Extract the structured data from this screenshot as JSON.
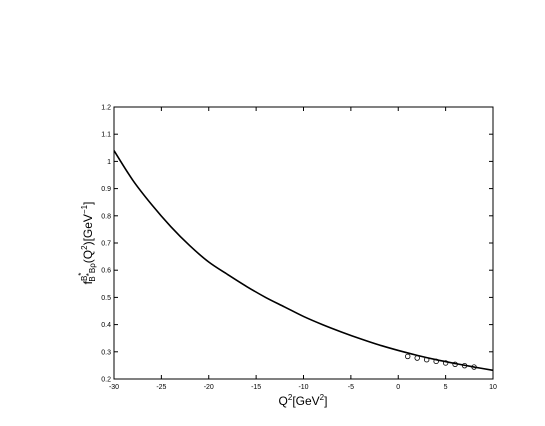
{
  "chart_data": {
    "type": "line",
    "title": "",
    "xlabel": {
      "base": "Q",
      "sup": "2",
      "mid": "[GeV",
      "sup2": "2",
      "end": "]"
    },
    "ylabel": {
      "f": "f",
      "sup_f": "B",
      "sup_f_sup": "*",
      "sub_f": "B",
      "sub_f_sup": "*",
      "sub_f_tail": "B",
      "sub_f_rho": "ρ",
      "paren": "(Q",
      "sup_q": "2",
      "tail": ")[GeV",
      "sup_tail": "−1",
      "end": "]"
    },
    "xlim": [
      -30,
      10
    ],
    "ylim": [
      0.2,
      1.2
    ],
    "x_ticks": [
      "-30",
      "-25",
      "-20",
      "-15",
      "-10",
      "-5",
      "0",
      "5",
      "10"
    ],
    "y_ticks": [
      "0.2",
      "0.3",
      "0.4",
      "0.5",
      "0.6",
      "0.7",
      "0.8",
      "0.9",
      "1",
      "1.1",
      "1.2"
    ],
    "grid": false,
    "series": [
      {
        "style": "solid-line",
        "color": "#000000",
        "x": [
          -30,
          -28,
          -26,
          -24,
          -22,
          -20,
          -18,
          -16,
          -14,
          -12,
          -10,
          -8,
          -6,
          -4,
          -2,
          0,
          2,
          4,
          6,
          8,
          10
        ],
        "y": [
          1.04,
          0.93,
          0.84,
          0.76,
          0.69,
          0.63,
          0.584,
          0.54,
          0.5,
          0.465,
          0.43,
          0.4,
          0.373,
          0.348,
          0.325,
          0.305,
          0.287,
          0.271,
          0.257,
          0.244,
          0.232
        ]
      },
      {
        "style": "open-circle-markers",
        "color": "#000000",
        "x": [
          1,
          2,
          3,
          4,
          5,
          6,
          7,
          8
        ],
        "y": [
          0.283,
          0.277,
          0.271,
          0.265,
          0.259,
          0.254,
          0.249,
          0.244
        ]
      }
    ]
  }
}
